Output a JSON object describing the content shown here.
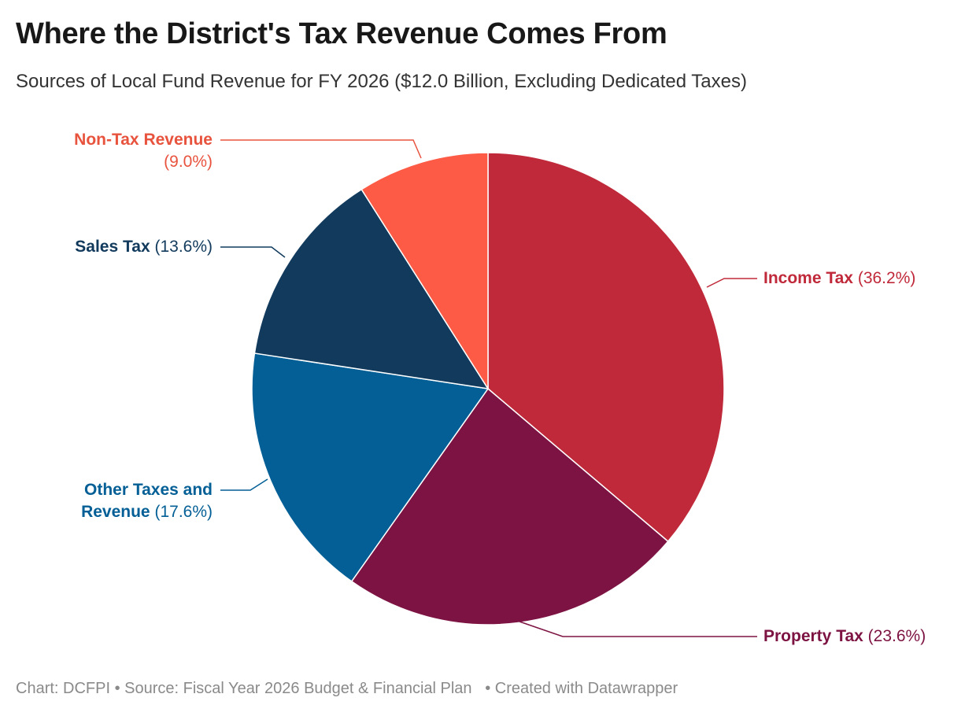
{
  "title": "Where the District's Tax Revenue Comes From",
  "subtitle": "Sources of Local Fund Revenue for FY 2026 ($12.0 Billion, Excluding Dedicated Taxes)",
  "footer": {
    "chart": "Chart: DCFPI",
    "source": "Source: Fiscal Year 2026 Budget & Financial Plan",
    "created": "Created with Datawrapper"
  },
  "chart_data": {
    "type": "pie",
    "title": "Where the District's Tax Revenue Comes From",
    "subtitle": "Sources of Local Fund Revenue for FY 2026 ($12.0 Billion, Excluding Dedicated Taxes)",
    "unit": "%",
    "start": "12 o'clock, clockwise",
    "slices": [
      {
        "label": "Income Tax",
        "value": 36.2,
        "display": "(36.2%)",
        "color": "#c0293a"
      },
      {
        "label": "Property Tax",
        "value": 23.6,
        "display": "(23.6%)",
        "color": "#7d1342"
      },
      {
        "label": "Other Taxes and Revenue",
        "label_line1": "Other Taxes and",
        "label_line2": "Revenue",
        "value": 17.6,
        "display": "(17.6%)",
        "color": "#035f95"
      },
      {
        "label": "Sales Tax",
        "value": 13.6,
        "display": "(13.6%)",
        "color": "#113a5c"
      },
      {
        "label": "Non-Tax Revenue",
        "value": 9.0,
        "display": "(9.0%)",
        "color": "#fd5b45"
      }
    ]
  }
}
